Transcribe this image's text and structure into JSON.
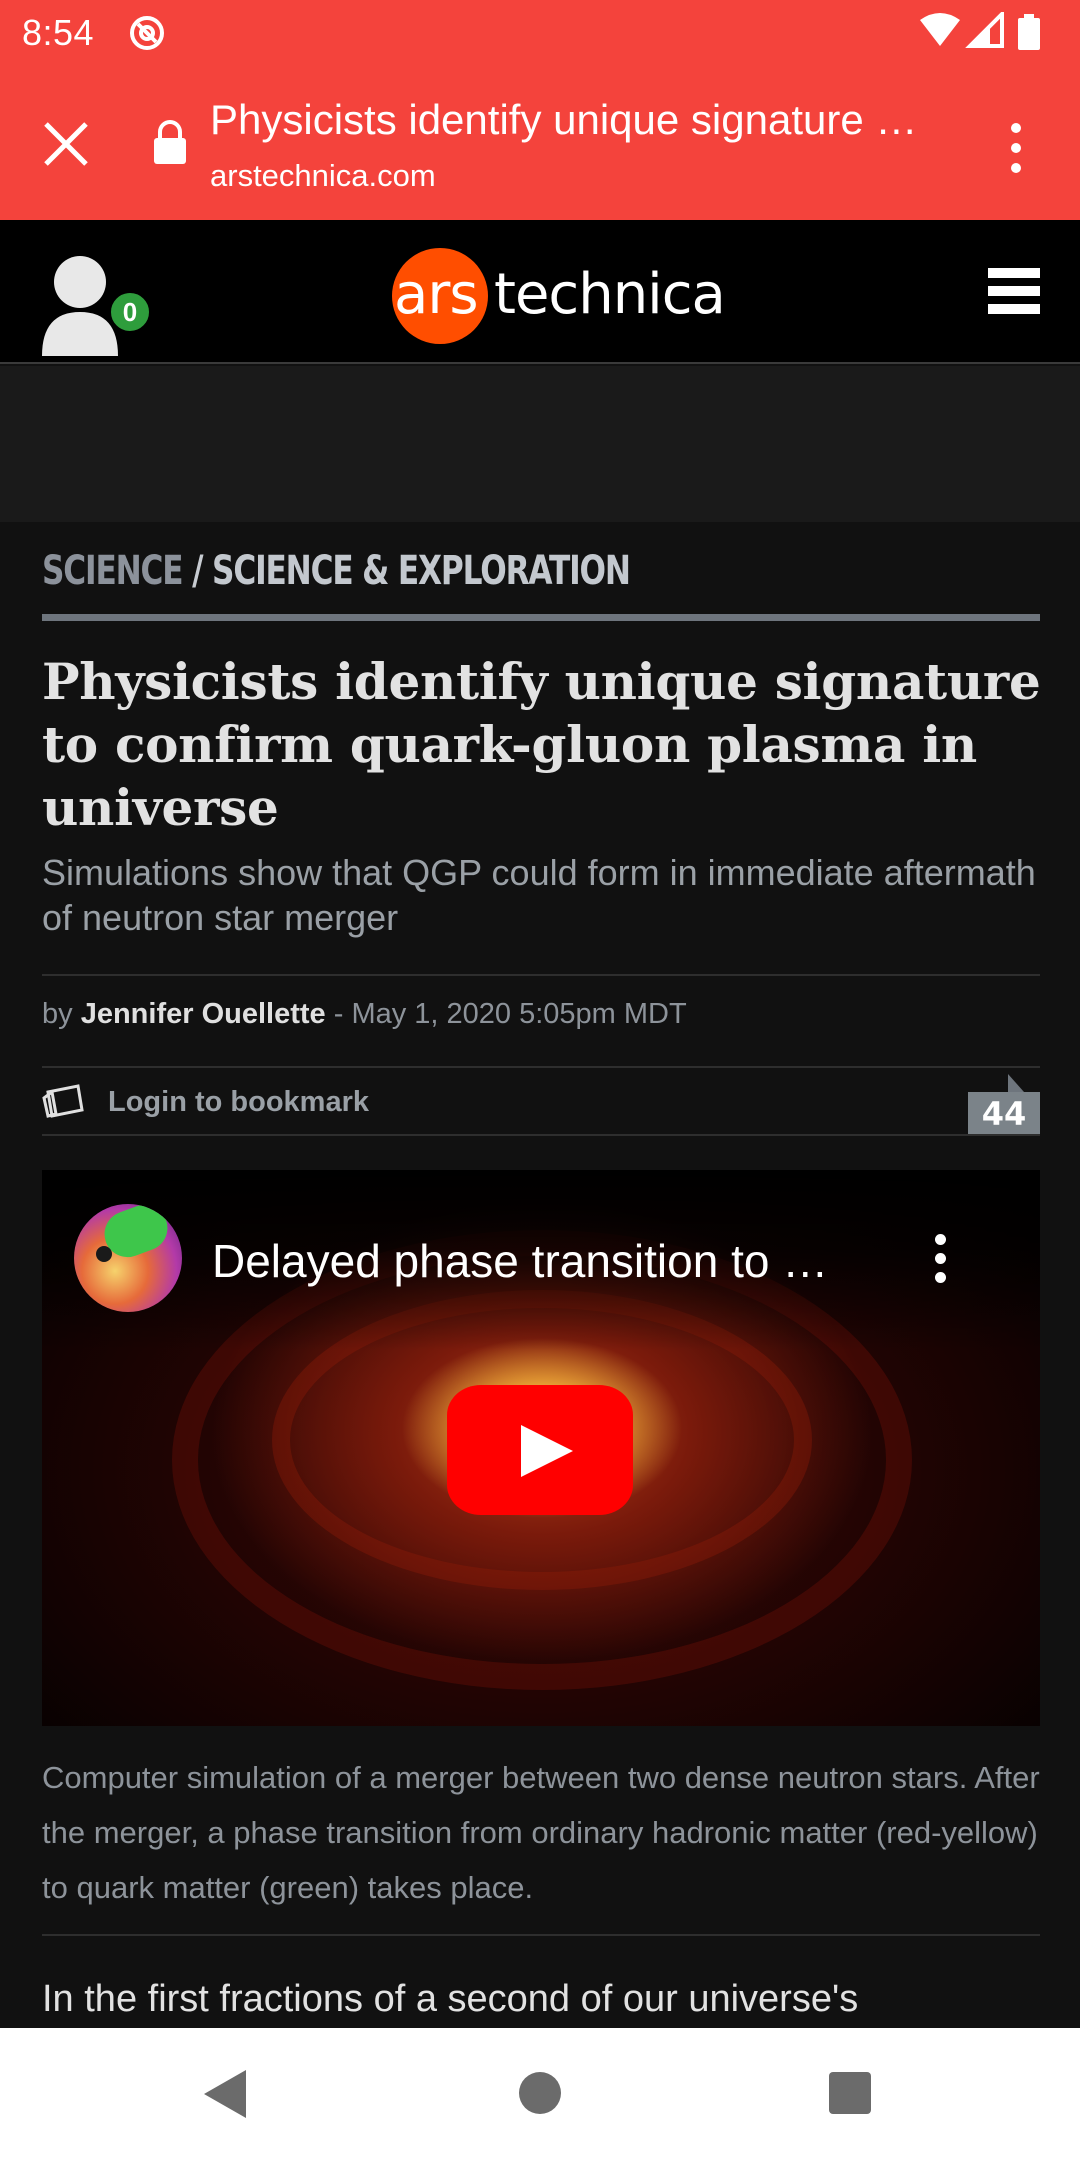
{
  "status_bar": {
    "time": "8:54",
    "icons": [
      "do-not-disturb-icon",
      "wifi-icon",
      "signal-icon",
      "battery-icon"
    ]
  },
  "custom_tab": {
    "page_title": "Physicists identify unique signature …",
    "domain": "arstechnica.com",
    "background_color": "#f4433c"
  },
  "site_header": {
    "logo_ars": "ars",
    "logo_technica": "technica",
    "notification_count": "0",
    "accent_color": "#ff4e00"
  },
  "article": {
    "section": "SCIENCE",
    "separator": "/",
    "subsection": "SCIENCE & EXPLORATION",
    "headline": "Physicists identify unique signature to confirm quark-gluon plasma in universe",
    "dek": "Simulations show that QGP could form in immediate aftermath of neutron star merger",
    "by_prefix": "by",
    "author": "Jennifer Ouellette",
    "date": "- May 1, 2020 5:05pm MDT",
    "bookmark_label": "Login to bookmark",
    "comment_count": "44",
    "video": {
      "title": "Delayed phase transition to …"
    },
    "caption": "Computer simulation of a merger between two dense neutron stars. After the merger, a phase transition from ordinary hadronic matter (red-yellow) to quark matter (green) takes place.",
    "body_start": "In the first fractions of a second of our universe's"
  },
  "nav_bar": {
    "buttons": [
      "back-icon",
      "home-icon",
      "recents-icon"
    ]
  }
}
